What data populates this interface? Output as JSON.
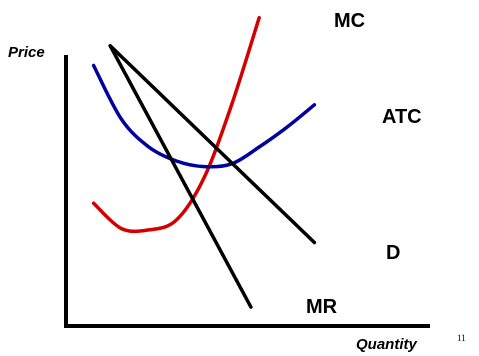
{
  "slide_number": "11",
  "colors": {
    "mc": "#d40000",
    "atc": "#00009c",
    "demand": "#000000",
    "mr": "#000000",
    "axis": "#000000"
  },
  "chart_data": {
    "type": "line",
    "title": "",
    "xlabel": "Quantity",
    "ylabel": "Price",
    "xlim": [
      0,
      10
    ],
    "ylim": [
      0,
      10
    ],
    "grid": false,
    "legend": "none",
    "x_ticks": "none",
    "y_ticks": "none",
    "series": [
      {
        "name": "MC",
        "points": [
          [
            1.0,
            4.3
          ],
          [
            2.0,
            3.4
          ],
          [
            3.0,
            3.35
          ],
          [
            4.0,
            3.7
          ],
          [
            5.0,
            5.2
          ],
          [
            6.0,
            7.8
          ],
          [
            7.0,
            10.9
          ]
        ]
      },
      {
        "name": "ATC",
        "points": [
          [
            1.0,
            9.2
          ],
          [
            2.0,
            7.3
          ],
          [
            3.0,
            6.3
          ],
          [
            4.0,
            5.8
          ],
          [
            5.0,
            5.6
          ],
          [
            6.0,
            5.7
          ],
          [
            7.0,
            6.3
          ],
          [
            8.0,
            7.0
          ],
          [
            9.0,
            7.8
          ]
        ]
      },
      {
        "name": "D",
        "points": [
          [
            1.6,
            9.9
          ],
          [
            9.0,
            2.9
          ]
        ]
      },
      {
        "name": "MR",
        "points": [
          [
            1.6,
            9.9
          ],
          [
            6.7,
            0.6
          ]
        ]
      }
    ]
  }
}
